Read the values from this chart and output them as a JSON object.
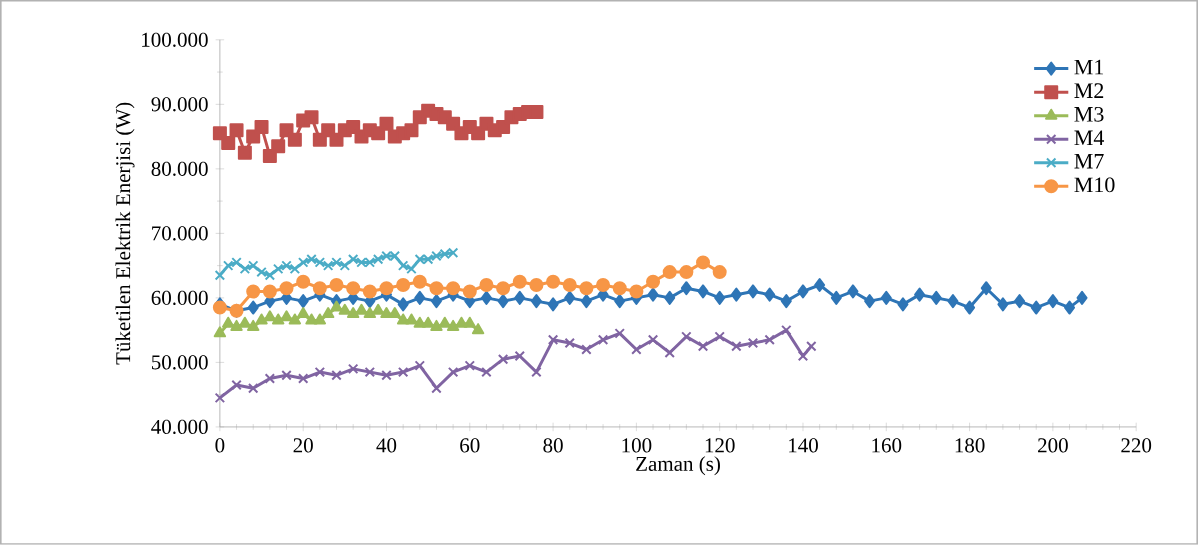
{
  "chart_data": {
    "type": "line",
    "xlabel": "Zaman (s)",
    "ylabel": "Tüketilen Elektrik Enerjisi (W)",
    "xlim": [
      0,
      220
    ],
    "xticks": [
      0,
      20,
      40,
      60,
      80,
      100,
      120,
      140,
      160,
      180,
      200,
      220
    ],
    "ylim": [
      40000,
      100000
    ],
    "yticks": [
      {
        "value": 40000,
        "label": "40.000"
      },
      {
        "value": 50000,
        "label": "50.000"
      },
      {
        "value": 60000,
        "label": "60.000"
      },
      {
        "value": 70000,
        "label": "70.000"
      },
      {
        "value": 80000,
        "label": "80.000"
      },
      {
        "value": 90000,
        "label": "90.000"
      },
      {
        "value": 100000,
        "label": "100.000"
      }
    ],
    "grid": false,
    "legend": "top right",
    "line_style": "solid",
    "series": [
      {
        "name": "M1",
        "color": "#2e75b6",
        "marker": "diamond",
        "x": [
          0,
          4,
          8,
          12,
          16,
          20,
          24,
          28,
          32,
          36,
          40,
          44,
          48,
          52,
          56,
          60,
          64,
          68,
          72,
          76,
          80,
          84,
          88,
          92,
          96,
          100,
          104,
          108,
          112,
          116,
          120,
          124,
          128,
          132,
          136,
          140,
          144,
          148,
          152,
          156,
          160,
          164,
          168,
          172,
          176,
          180,
          184,
          188,
          192,
          196,
          200,
          204,
          207
        ],
        "values": [
          59000,
          58000,
          58500,
          59500,
          60000,
          59500,
          60500,
          59500,
          60000,
          59500,
          60500,
          59000,
          60000,
          59500,
          60500,
          59500,
          60000,
          59500,
          60000,
          59500,
          59000,
          60000,
          59500,
          60500,
          59500,
          60000,
          60500,
          60000,
          61500,
          61000,
          60000,
          60500,
          61000,
          60500,
          59500,
          61000,
          62000,
          60000,
          61000,
          59500,
          60000,
          59000,
          60500,
          60000,
          59500,
          58500,
          61500,
          59000,
          59500,
          58500,
          59500,
          58500,
          60000
        ]
      },
      {
        "name": "M2",
        "color": "#c0504d",
        "marker": "square",
        "x": [
          0,
          2,
          4,
          6,
          8,
          10,
          12,
          14,
          16,
          18,
          20,
          22,
          24,
          26,
          28,
          30,
          32,
          34,
          36,
          38,
          40,
          42,
          44,
          46,
          48,
          50,
          52,
          54,
          56,
          58,
          60,
          62,
          64,
          66,
          68,
          70,
          72,
          74,
          76
        ],
        "values": [
          85500,
          84000,
          86000,
          82500,
          85000,
          86500,
          82000,
          83500,
          86000,
          84500,
          87500,
          88000,
          84500,
          86000,
          84500,
          86000,
          86500,
          85000,
          86000,
          85500,
          87000,
          85000,
          85500,
          86000,
          88000,
          89000,
          88500,
          88000,
          87000,
          85500,
          86500,
          85500,
          87000,
          86000,
          86500,
          88000,
          88500,
          88800,
          88800
        ]
      },
      {
        "name": "M3",
        "color": "#9bbb59",
        "marker": "triangle",
        "x": [
          0,
          2,
          4,
          6,
          8,
          10,
          12,
          14,
          16,
          18,
          20,
          22,
          24,
          26,
          28,
          30,
          32,
          34,
          36,
          38,
          40,
          42,
          44,
          46,
          48,
          50,
          52,
          54,
          56,
          58,
          60,
          62
        ],
        "values": [
          54500,
          56000,
          55500,
          56000,
          55500,
          56500,
          57000,
          56500,
          57000,
          56500,
          57500,
          56500,
          56500,
          57500,
          58500,
          58000,
          57500,
          58000,
          57500,
          58000,
          57500,
          57500,
          56500,
          56500,
          56000,
          56000,
          55500,
          56000,
          55500,
          56000,
          56000,
          55000
        ]
      },
      {
        "name": "M4",
        "color": "#8064a2",
        "marker": "cross",
        "x": [
          0,
          4,
          8,
          12,
          16,
          20,
          24,
          28,
          32,
          36,
          40,
          44,
          48,
          52,
          56,
          60,
          64,
          68,
          72,
          76,
          80,
          84,
          88,
          92,
          96,
          100,
          104,
          108,
          112,
          116,
          120,
          124,
          128,
          132,
          136,
          140,
          142
        ],
        "values": [
          44500,
          46500,
          46000,
          47500,
          48000,
          47500,
          48500,
          48000,
          49000,
          48500,
          48000,
          48500,
          49500,
          46000,
          48500,
          49500,
          48500,
          50500,
          51000,
          48500,
          53500,
          53000,
          52000,
          53500,
          54500,
          52000,
          53500,
          51500,
          54000,
          52500,
          54000,
          52500,
          53000,
          53500,
          55000,
          51000,
          52500
        ]
      },
      {
        "name": "M7",
        "color": "#4bacc6",
        "marker": "cross",
        "x": [
          0,
          2,
          4,
          6,
          8,
          10,
          12,
          14,
          16,
          18,
          20,
          22,
          24,
          26,
          28,
          30,
          32,
          34,
          36,
          38,
          40,
          42,
          44,
          46,
          48,
          50,
          52,
          54,
          56
        ],
        "values": [
          63500,
          65000,
          65500,
          64500,
          65000,
          64000,
          63500,
          64500,
          65000,
          64500,
          65500,
          66000,
          65500,
          65000,
          65500,
          65000,
          66000,
          65500,
          65500,
          66000,
          66500,
          66500,
          65000,
          64500,
          66000,
          66000,
          66500,
          66800,
          67000
        ]
      },
      {
        "name": "M10",
        "color": "#f79646",
        "marker": "circle",
        "x": [
          0,
          4,
          8,
          12,
          16,
          20,
          24,
          28,
          32,
          36,
          40,
          44,
          48,
          52,
          56,
          60,
          64,
          68,
          72,
          76,
          80,
          84,
          88,
          92,
          96,
          100,
          104,
          108,
          112,
          116,
          120
        ],
        "values": [
          58500,
          58000,
          61000,
          61000,
          61500,
          62500,
          61500,
          62000,
          61500,
          61000,
          61500,
          62000,
          62500,
          61500,
          61500,
          61000,
          62000,
          61500,
          62500,
          62000,
          62500,
          62000,
          61500,
          62000,
          61500,
          61000,
          62500,
          64000,
          64000,
          65500,
          64000
        ]
      }
    ]
  }
}
